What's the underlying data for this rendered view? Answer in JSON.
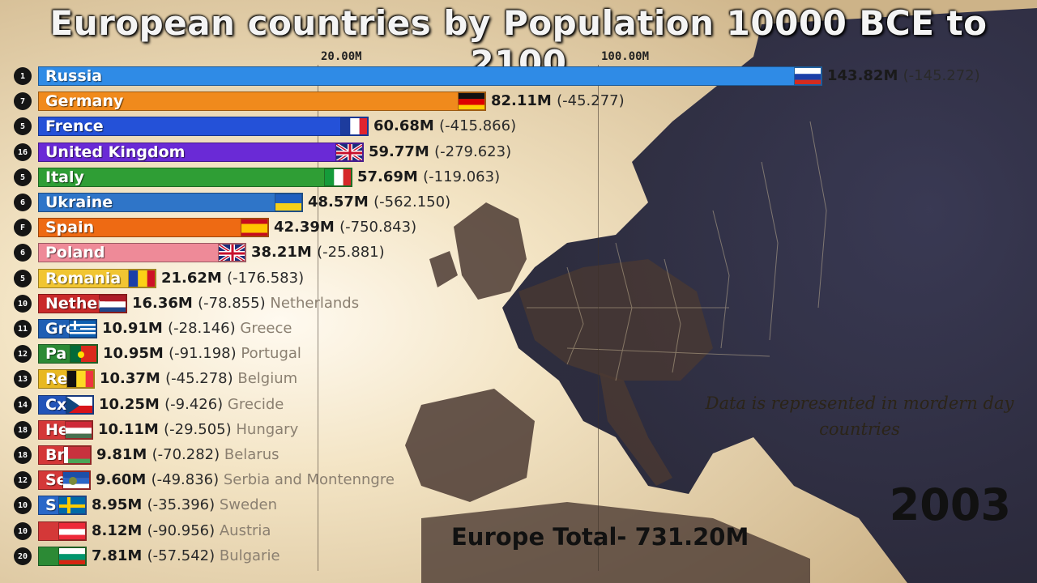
{
  "title": "European countries by Population 10000 BCE to 2100",
  "note": "Data is represented in mordern day countries",
  "year": "2003",
  "total_label": "Europe Total- 731.20M",
  "chart_data": {
    "type": "bar",
    "orientation": "horizontal",
    "ticks": [
      {
        "label": "20.00M",
        "value": 20
      },
      {
        "label": "100.00M",
        "value": 100
      }
    ],
    "items": [
      {
        "rank": "1",
        "label": "Russia",
        "value": 143.82,
        "value_label": "143.82M",
        "change": "(-145.272)",
        "extra": "",
        "color": "#2f8be6",
        "flag": "russia"
      },
      {
        "rank": "7",
        "label": "Germany",
        "value": 82.11,
        "value_label": "82.11M",
        "change": "(-45.277)",
        "extra": "",
        "color": "#f08a1c",
        "flag": "germany"
      },
      {
        "rank": "5",
        "label": "Frence",
        "value": 60.68,
        "value_label": "60.68M",
        "change": "(-415.866)",
        "extra": "",
        "color": "#2451d8",
        "flag": "france"
      },
      {
        "rank": "16",
        "label": "United Kingdom",
        "value": 59.77,
        "value_label": "59.77M",
        "change": "(-279.623)",
        "extra": "",
        "color": "#6a2ad6",
        "flag": "uk"
      },
      {
        "rank": "5",
        "label": "Italy",
        "value": 57.69,
        "value_label": "57.69M",
        "change": "(-119.063)",
        "extra": "",
        "color": "#2f9e35",
        "flag": "italy"
      },
      {
        "rank": "6",
        "label": "Ukraine",
        "value": 48.57,
        "value_label": "48.57M",
        "change": "(-562.150)",
        "extra": "",
        "color": "#2f75c8",
        "flag": "ukraine"
      },
      {
        "rank": "F",
        "label": "Spain",
        "value": 42.39,
        "value_label": "42.39M",
        "change": "(-750.843)",
        "extra": "",
        "color": "#ee6a13",
        "flag": "spain"
      },
      {
        "rank": "6",
        "label": "Poland",
        "value": 38.21,
        "value_label": "38.21M",
        "change": "(-25.881)",
        "extra": "",
        "color": "#ee8a98",
        "flag": "uk"
      },
      {
        "rank": "5",
        "label": "Romania",
        "value": 21.62,
        "value_label": "21.62M",
        "change": "(-176.583)",
        "extra": "",
        "color": "#f1c532",
        "flag": "romania"
      },
      {
        "rank": "10",
        "label": "Nether",
        "value": 16.36,
        "value_label": "16.36M",
        "change": "(-78.855)",
        "extra": "Netherlands",
        "color": "#c92a2a",
        "flag": "netherlands"
      },
      {
        "rank": "11",
        "label": "Gre",
        "value": 10.91,
        "value_label": "10.91M",
        "change": "(-28.146)",
        "extra": "Greece",
        "color": "#1f5fb4",
        "flag": "greece"
      },
      {
        "rank": "12",
        "label": "Pa",
        "value": 10.95,
        "value_label": "10.95M",
        "change": "(-91.198)",
        "extra": "Portugal",
        "color": "#2c8a35",
        "flag": "portugal"
      },
      {
        "rank": "13",
        "label": "Re",
        "value": 10.37,
        "value_label": "10.37M",
        "change": "(-45.278)",
        "extra": "Belgium",
        "color": "#e8b820",
        "flag": "belgium"
      },
      {
        "rank": "14",
        "label": "Cx",
        "value": 10.25,
        "value_label": "10.25M",
        "change": "(-9.426)",
        "extra": "Grecide",
        "color": "#2254b8",
        "flag": "czech"
      },
      {
        "rank": "18",
        "label": "He",
        "value": 10.11,
        "value_label": "10.11M",
        "change": "(-29.505)",
        "extra": "Hungary",
        "color": "#d43838",
        "flag": "hungary"
      },
      {
        "rank": "18",
        "label": "Br",
        "value": 9.81,
        "value_label": "9.81M",
        "change": "(-70.282)",
        "extra": "Belarus",
        "color": "#d43838",
        "flag": "belarus"
      },
      {
        "rank": "12",
        "label": "Se",
        "value": 9.6,
        "value_label": "9.60M",
        "change": "(-49.836)",
        "extra": "Serbia and Montenngre",
        "color": "#d43838",
        "flag": "serbia"
      },
      {
        "rank": "10",
        "label": "S",
        "value": 8.95,
        "value_label": "8.95M",
        "change": "(-35.396)",
        "extra": "Sweden",
        "color": "#2a68c8",
        "flag": "sweden"
      },
      {
        "rank": "10",
        "label": "",
        "value": 8.12,
        "value_label": "8.12M",
        "change": "(-90.956)",
        "extra": "Austria",
        "color": "#d43838",
        "flag": "austria"
      },
      {
        "rank": "20",
        "label": "",
        "value": 7.81,
        "value_label": "7.81M",
        "change": "(-57.542)",
        "extra": "Bulgarie",
        "color": "#2c8a35",
        "flag": "bulgaria"
      }
    ]
  },
  "colors": {
    "rank_badge": "#151515",
    "title_text": "#f4f4f4",
    "map_dark": "#3c3046"
  }
}
